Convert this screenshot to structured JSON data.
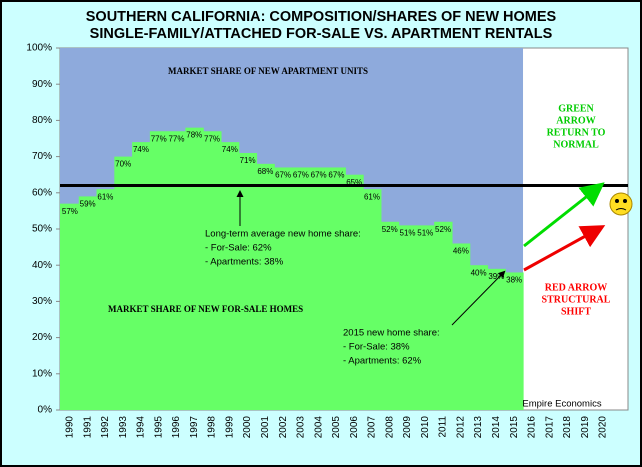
{
  "chart_data": {
    "type": "step_area",
    "title": [
      "SOUTHERN CALIFORNIA:  COMPOSITION/SHARES OF NEW HOMES",
      "SINGLE-FAMILY/ATTACHED  FOR-SALE VS. APARTMENT RENTALS"
    ],
    "categories": [
      "1990",
      "1991",
      "1992",
      "1993",
      "1994",
      "1995",
      "1996",
      "1997",
      "1998",
      "1999",
      "2000",
      "2001",
      "2002",
      "2003",
      "2004",
      "2005",
      "2006",
      "2007",
      "2008",
      "2009",
      "2010",
      "2011",
      "2012",
      "2013",
      "2014",
      "2015",
      "2016",
      "2017",
      "2018",
      "2019",
      "2020"
    ],
    "values": [
      57,
      59,
      61,
      70,
      74,
      77,
      77,
      78,
      77,
      74,
      71,
      68,
      67,
      67,
      67,
      67,
      65,
      61,
      52,
      51,
      51,
      52,
      46,
      40,
      39,
      38,
      null,
      null,
      null,
      null,
      null
    ],
    "value_labels": [
      "57%",
      "59%",
      "61%",
      "70%",
      "74%",
      "77%",
      "77%",
      "78%",
      "77%",
      "74%",
      "71%",
      "68%",
      "67%",
      "67%",
      "67%",
      "67%",
      "65%",
      "61%",
      "52%",
      "51%",
      "51%",
      "52%",
      "46%",
      "40%",
      "39%",
      "38%",
      null,
      null,
      null,
      null,
      null
    ],
    "color": "#66ff66",
    "background_color": "#8eaadc",
    "reference_line": 62,
    "ylim": [
      0,
      100
    ],
    "yticks": [
      {
        "value": 0,
        "label": "0%"
      },
      {
        "value": 10,
        "label": "10%"
      },
      {
        "value": 20,
        "label": "20%"
      },
      {
        "value": 30,
        "label": "30%"
      },
      {
        "value": 40,
        "label": "40%"
      },
      {
        "value": 50,
        "label": "50%"
      },
      {
        "value": 60,
        "label": "60%"
      },
      {
        "value": 70,
        "label": "70%"
      },
      {
        "value": 80,
        "label": "80%"
      },
      {
        "value": 90,
        "label": "90%"
      },
      {
        "value": 100,
        "label": "100%"
      }
    ],
    "annotations": {
      "apartments_area": "MARKET SHARE OF NEW APARTMENT UNITS",
      "for_sale_area": "MARKET SHARE OF NEW FOR-SALE HOMES",
      "average": [
        "Long-term average new home share:",
        "- For-Sale: 62%",
        "- Apartments: 38%"
      ],
      "latest": [
        "2015 new home share:",
        "- For-Sale: 38%",
        "- Apartments: 62%"
      ],
      "green_arrow": [
        "GREEN",
        "ARROW",
        "RETURN TO",
        "NORMAL"
      ],
      "red_arrow": [
        "RED ARROW",
        "STRUCTURAL",
        "SHIFT"
      ],
      "source": "Empire Economics"
    }
  }
}
